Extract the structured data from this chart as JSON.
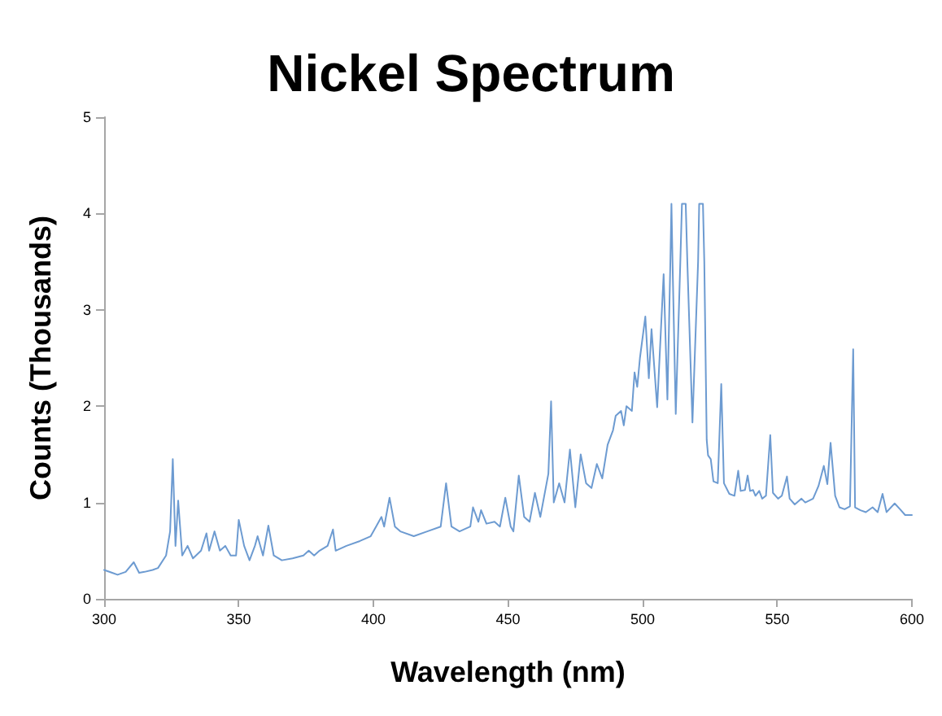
{
  "chart_data": {
    "type": "line",
    "title": "Nickel Spectrum",
    "xlabel": "Wavelength (nm)",
    "ylabel": "Counts (Thousands)",
    "xlim": [
      300,
      600
    ],
    "xticks": [
      300,
      350,
      400,
      450,
      500,
      550,
      600
    ],
    "ylim": [
      0,
      5
    ],
    "yticks": [
      0,
      1,
      2,
      3,
      4,
      5
    ],
    "grid": false,
    "marker": "none",
    "line_style": "solid",
    "series": [
      {
        "color": "#6d9bd1",
        "x": [
          300,
          303,
          305,
          308,
          311,
          313,
          315,
          318,
          320,
          323,
          324.5,
          325.5,
          326.5,
          327.5,
          329,
          331,
          333,
          336,
          338,
          339,
          341,
          343,
          345,
          347,
          349,
          350,
          352,
          354,
          356,
          357,
          359,
          361,
          363,
          366,
          370,
          374,
          376,
          378,
          380,
          383,
          385,
          386,
          390,
          395,
          399,
          401,
          403,
          404,
          406,
          408,
          410,
          415,
          420,
          425,
          427,
          429,
          432,
          436,
          437,
          439,
          440,
          442,
          445,
          447,
          449,
          451,
          452,
          454,
          456,
          458,
          460,
          462,
          465,
          466,
          467,
          469,
          471,
          473,
          475,
          477,
          479,
          481,
          483,
          485,
          487,
          489,
          490,
          492,
          493,
          494,
          496,
          497,
          498,
          499,
          501,
          502.3,
          503.3,
          505.4,
          507.8,
          509.2,
          510.3,
          510.7,
          511.1,
          512.3,
          514,
          514.6,
          516,
          516.6,
          518.5,
          520.6,
          521,
          522.4,
          522.9,
          523.8,
          524.3,
          525.3,
          526.3,
          527.9,
          529.2,
          530.2,
          532.2,
          534.1,
          535.5,
          536.4,
          538,
          539,
          539.9,
          541,
          541.9,
          543.3,
          544.4,
          545.8,
          547.4,
          548.4,
          550.3,
          551.7,
          553.6,
          554.6,
          556.5,
          559,
          560.4,
          563.3,
          565.3,
          567.3,
          568.6,
          569.8,
          571.5,
          573.1,
          575,
          577,
          578.2,
          578.9,
          580.9,
          582.9,
          585.4,
          587.3,
          589.1,
          590.6,
          593.6,
          595.6,
          597.5,
          600
        ],
        "values": [
          0.3,
          0.27,
          0.25,
          0.28,
          0.38,
          0.27,
          0.28,
          0.3,
          0.32,
          0.45,
          0.7,
          1.45,
          0.55,
          1.02,
          0.45,
          0.55,
          0.42,
          0.5,
          0.68,
          0.5,
          0.7,
          0.5,
          0.55,
          0.45,
          0.45,
          0.82,
          0.55,
          0.4,
          0.55,
          0.65,
          0.45,
          0.76,
          0.45,
          0.4,
          0.42,
          0.45,
          0.5,
          0.45,
          0.5,
          0.55,
          0.72,
          0.5,
          0.55,
          0.6,
          0.65,
          0.75,
          0.85,
          0.75,
          1.05,
          0.75,
          0.7,
          0.65,
          0.7,
          0.75,
          1.2,
          0.75,
          0.7,
          0.75,
          0.95,
          0.8,
          0.92,
          0.78,
          0.8,
          0.75,
          1.05,
          0.75,
          0.7,
          1.28,
          0.85,
          0.8,
          1.1,
          0.85,
          1.3,
          2.05,
          1.0,
          1.2,
          1.0,
          1.55,
          0.95,
          1.5,
          1.2,
          1.15,
          1.4,
          1.25,
          1.6,
          1.75,
          1.9,
          1.95,
          1.8,
          2.0,
          1.95,
          2.35,
          2.2,
          2.5,
          2.93,
          2.29,
          2.8,
          1.99,
          3.37,
          2.07,
          3.5,
          4.1,
          3.5,
          1.92,
          3.5,
          4.1,
          4.1,
          3.5,
          1.83,
          3.5,
          4.1,
          4.1,
          3.5,
          1.65,
          1.49,
          1.45,
          1.22,
          1.2,
          2.23,
          1.2,
          1.09,
          1.07,
          1.33,
          1.12,
          1.13,
          1.28,
          1.12,
          1.13,
          1.07,
          1.12,
          1.04,
          1.07,
          1.7,
          1.1,
          1.04,
          1.07,
          1.27,
          1.04,
          0.98,
          1.04,
          1.0,
          1.04,
          1.17,
          1.38,
          1.19,
          1.62,
          1.07,
          0.95,
          0.93,
          0.96,
          2.59,
          0.95,
          0.92,
          0.9,
          0.95,
          0.9,
          1.09,
          0.9,
          0.99,
          0.93,
          0.87,
          0.87
        ]
      }
    ]
  }
}
